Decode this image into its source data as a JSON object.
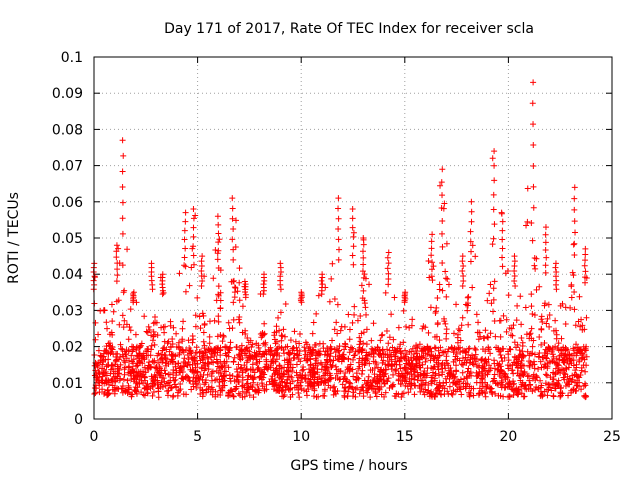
{
  "chart_data": {
    "type": "scatter",
    "title": "Day 171 of 2017, Rate Of TEC Index for receiver scla",
    "xlabel": "GPS time / hours",
    "ylabel": "ROTI / TECUs",
    "xlim": [
      0,
      25
    ],
    "ylim": [
      0,
      0.1
    ],
    "xticks": [
      "0",
      "5",
      "10",
      "15",
      "20",
      "25"
    ],
    "yticks": [
      "0",
      "0.01",
      "0.02",
      "0.03",
      "0.04",
      "0.05",
      "0.06",
      "0.07",
      "0.08",
      "0.09",
      "0.1"
    ],
    "grid": true,
    "marker": "plus",
    "color": "#ff0000",
    "peaks": [
      {
        "x": 0.0,
        "y": 0.043
      },
      {
        "x": 0.5,
        "y": 0.03
      },
      {
        "x": 1.1,
        "y": 0.048
      },
      {
        "x": 1.4,
        "y": 0.077
      },
      {
        "x": 1.9,
        "y": 0.035
      },
      {
        "x": 2.8,
        "y": 0.043
      },
      {
        "x": 3.3,
        "y": 0.04
      },
      {
        "x": 4.4,
        "y": 0.057
      },
      {
        "x": 4.8,
        "y": 0.058
      },
      {
        "x": 5.2,
        "y": 0.045
      },
      {
        "x": 6.0,
        "y": 0.056
      },
      {
        "x": 6.7,
        "y": 0.061
      },
      {
        "x": 7.3,
        "y": 0.038
      },
      {
        "x": 8.2,
        "y": 0.04
      },
      {
        "x": 9.0,
        "y": 0.043
      },
      {
        "x": 10.0,
        "y": 0.035
      },
      {
        "x": 11.0,
        "y": 0.04
      },
      {
        "x": 11.8,
        "y": 0.061
      },
      {
        "x": 12.5,
        "y": 0.058
      },
      {
        "x": 13.0,
        "y": 0.05
      },
      {
        "x": 14.2,
        "y": 0.046
      },
      {
        "x": 15.0,
        "y": 0.035
      },
      {
        "x": 16.3,
        "y": 0.051
      },
      {
        "x": 16.8,
        "y": 0.069
      },
      {
        "x": 17.8,
        "y": 0.045
      },
      {
        "x": 18.2,
        "y": 0.06
      },
      {
        "x": 19.3,
        "y": 0.074
      },
      {
        "x": 19.7,
        "y": 0.057
      },
      {
        "x": 20.3,
        "y": 0.045
      },
      {
        "x": 21.2,
        "y": 0.093
      },
      {
        "x": 21.8,
        "y": 0.053
      },
      {
        "x": 22.3,
        "y": 0.043
      },
      {
        "x": 23.2,
        "y": 0.064
      },
      {
        "x": 23.7,
        "y": 0.047
      }
    ]
  }
}
